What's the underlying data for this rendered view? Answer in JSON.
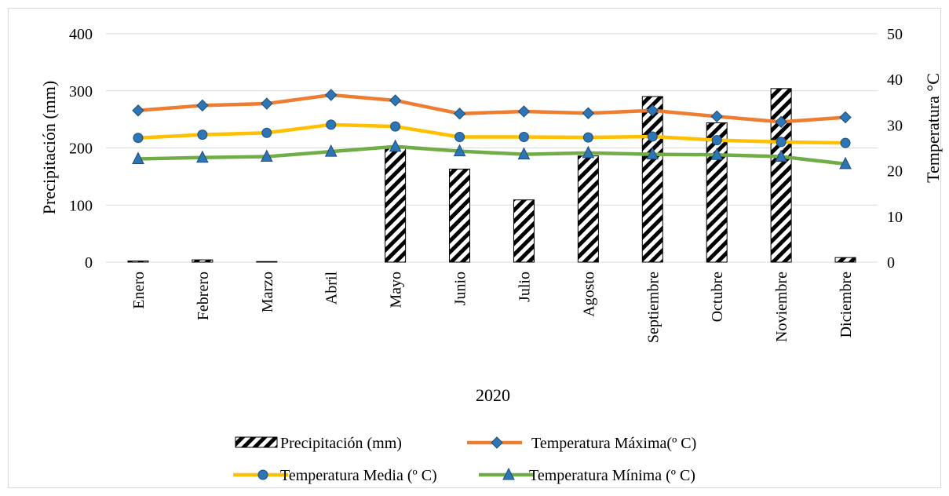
{
  "chart_data": {
    "type": "bar",
    "categories": [
      "Enero",
      "Febrero",
      "Marzo",
      "Abril",
      "Mayo",
      "Junio",
      "Julio",
      "Agosto",
      "Septiembre",
      "Octubre",
      "Noviembre",
      "Diciembre"
    ],
    "xlabel": "2020",
    "ylabel": "Precipitación (mm)",
    "y2label": "Temperatura °C",
    "ylim": [
      0,
      400
    ],
    "y2lim": [
      0,
      50
    ],
    "yticks": [
      "0",
      "100",
      "200",
      "300",
      "400"
    ],
    "y2ticks": [
      "0",
      "10",
      "20",
      "30",
      "40",
      "50"
    ],
    "grid": true,
    "legend_position": "bottom",
    "bars": {
      "name": "Precipitación (mm)",
      "axis": "left",
      "pattern": "diagonal-hatch",
      "values": [
        2,
        4,
        1,
        0,
        200,
        163,
        109,
        186,
        290,
        244,
        304,
        8
      ]
    },
    "series": [
      {
        "name": "Temperatura Máxima(º C)",
        "axis": "right",
        "color": "#ED7D31",
        "marker": "diamond",
        "values": [
          33.2,
          34.3,
          34.7,
          36.6,
          35.4,
          32.5,
          33.0,
          32.6,
          33.2,
          31.9,
          30.7,
          31.7
        ]
      },
      {
        "name": "Temperatura Media (º C)",
        "axis": "right",
        "color": "#FFC000",
        "marker": "circle",
        "values": [
          27.2,
          27.9,
          28.3,
          30.1,
          29.7,
          27.4,
          27.4,
          27.3,
          27.5,
          26.7,
          26.3,
          26.1
        ]
      },
      {
        "name": "Temperatura Mínima (º C)",
        "axis": "right",
        "color": "#70AD47",
        "marker": "triangle",
        "values": [
          22.6,
          22.9,
          23.1,
          24.2,
          25.3,
          24.3,
          23.6,
          23.9,
          23.6,
          23.5,
          23.1,
          21.5
        ]
      }
    ],
    "colors": {
      "marker_fill": "#2E75B6",
      "marker_stroke": "#1F4E79",
      "grid": "#D9D9D9",
      "bar_stroke": "#000000"
    }
  }
}
